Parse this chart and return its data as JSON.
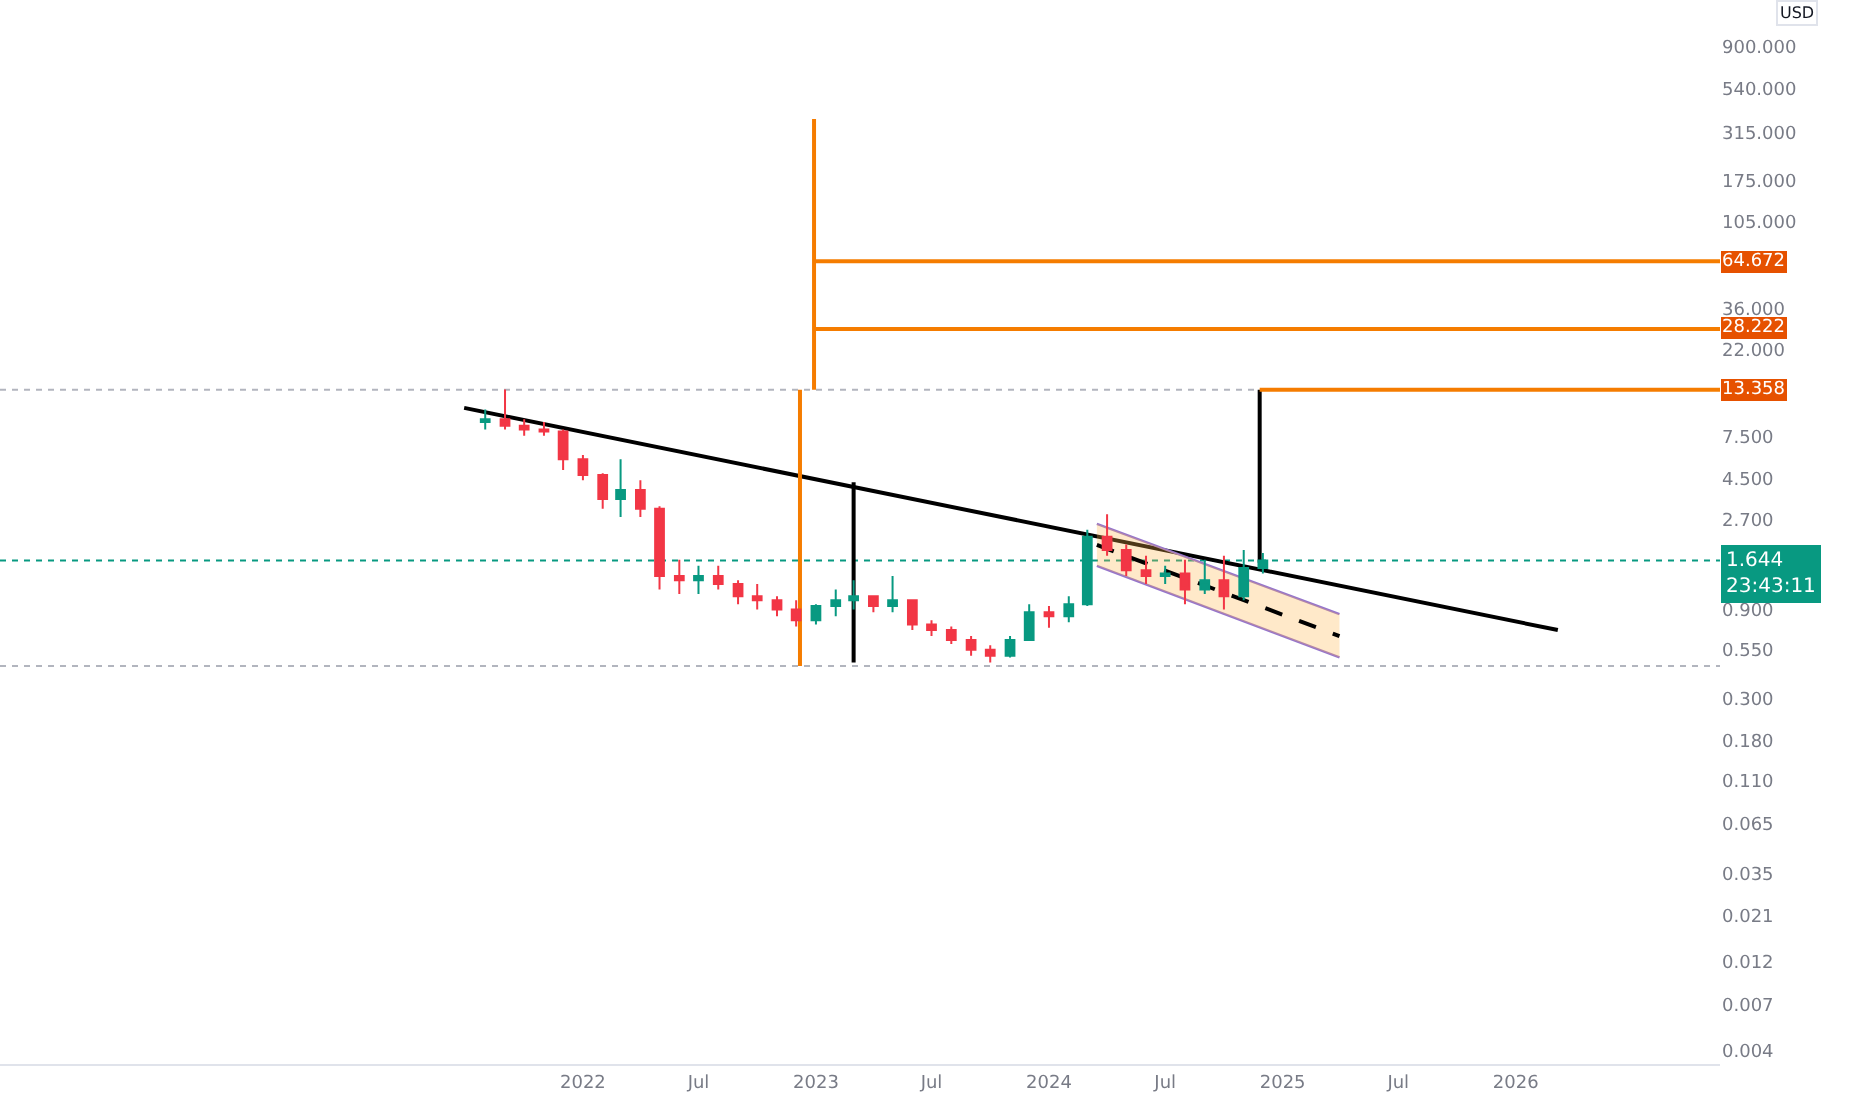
{
  "chart_data": {
    "type": "candlestick",
    "ylabel": "USD",
    "x": [
      "2021-08",
      "2021-09",
      "2021-10",
      "2021-11",
      "2021-12",
      "2022-01",
      "2022-02",
      "2022-03",
      "2022-04",
      "2022-05",
      "2022-06",
      "2022-07",
      "2022-08",
      "2022-09",
      "2022-10",
      "2022-11",
      "2022-12",
      "2023-01",
      "2023-02",
      "2023-03",
      "2023-04",
      "2023-05",
      "2023-06",
      "2023-07",
      "2023-08",
      "2023-09",
      "2023-10",
      "2023-11",
      "2023-12",
      "2024-01",
      "2024-02",
      "2024-03",
      "2024-04",
      "2024-05",
      "2024-06",
      "2024-07",
      "2024-08",
      "2024-09",
      "2024-10",
      "2024-11",
      "2024-12"
    ],
    "ohlc": [
      [
        9.0,
        10.5,
        8.2,
        9.3
      ],
      [
        9.3,
        13.4,
        8.2,
        8.6
      ],
      [
        8.6,
        9.3,
        7.6,
        8.2
      ],
      [
        8.2,
        9.0,
        7.6,
        8.0
      ],
      [
        8.0,
        8.2,
        5.0,
        5.7
      ],
      [
        5.7,
        6.0,
        4.4,
        4.7
      ],
      [
        4.7,
        4.8,
        3.1,
        3.5
      ],
      [
        3.5,
        5.7,
        2.8,
        3.9
      ],
      [
        3.9,
        4.4,
        2.8,
        3.1
      ],
      [
        3.1,
        3.2,
        1.15,
        1.36
      ],
      [
        1.36,
        1.66,
        1.09,
        1.29
      ],
      [
        1.29,
        1.54,
        1.09,
        1.36
      ],
      [
        1.36,
        1.54,
        1.15,
        1.23
      ],
      [
        1.23,
        1.29,
        0.96,
        1.06
      ],
      [
        1.06,
        1.23,
        0.9,
        1.01
      ],
      [
        1.01,
        1.06,
        0.83,
        0.9
      ],
      [
        0.9,
        1.01,
        0.73,
        0.79
      ],
      [
        0.79,
        0.96,
        0.75,
        0.94
      ],
      [
        0.94,
        1.15,
        0.83,
        1.01
      ],
      [
        1.01,
        1.29,
        0.9,
        1.06
      ],
      [
        1.06,
        1.06,
        0.87,
        0.94
      ],
      [
        0.94,
        1.36,
        0.87,
        1.01
      ],
      [
        1.01,
        1.01,
        0.7,
        0.75
      ],
      [
        0.75,
        0.79,
        0.65,
        0.7
      ],
      [
        0.7,
        0.73,
        0.59,
        0.62
      ],
      [
        0.62,
        0.65,
        0.51,
        0.55
      ],
      [
        0.55,
        0.58,
        0.47,
        0.51
      ],
      [
        0.51,
        0.65,
        0.5,
        0.62
      ],
      [
        0.62,
        0.96,
        0.62,
        0.87
      ],
      [
        0.87,
        0.94,
        0.72,
        0.83
      ],
      [
        0.83,
        1.06,
        0.77,
        0.96
      ],
      [
        0.96,
        2.4,
        0.94,
        2.2
      ],
      [
        2.2,
        2.9,
        1.74,
        1.87
      ],
      [
        1.87,
        2.0,
        1.36,
        1.46
      ],
      [
        1.46,
        1.74,
        1.23,
        1.36
      ],
      [
        1.36,
        1.54,
        1.23,
        1.4
      ],
      [
        1.4,
        1.66,
        0.96,
        1.15
      ],
      [
        1.15,
        1.66,
        1.09,
        1.29
      ],
      [
        1.29,
        1.74,
        0.9,
        1.06
      ],
      [
        1.06,
        1.87,
        1.01,
        1.5
      ],
      [
        1.5,
        1.8,
        1.4,
        1.644
      ]
    ],
    "series": [
      {
        "type": "line",
        "color": "#000000",
        "x": [
          "2021-06-29",
          "2026-03-08"
        ],
        "values": [
          10.7,
          0.7
        ]
      },
      {
        "type": "line",
        "color": "#000000",
        "x": [
          "2023-03-01",
          "2023-03-01"
        ],
        "values": [
          4.3,
          0.47
        ]
      },
      {
        "type": "line",
        "color": "#000000",
        "x": [
          "2024-11-26",
          "2024-11-26"
        ],
        "values": [
          1.6,
          13.358
        ]
      },
      {
        "type": "line",
        "color": "#f57c00",
        "x": [
          "2022-12-07",
          "2022-12-07"
        ],
        "values": [
          13.358,
          0.45
        ]
      },
      {
        "type": "line",
        "color": "#f57c00",
        "x": [
          "2022-12-29",
          "2022-12-29"
        ],
        "values": [
          371,
          13.358
        ]
      },
      {
        "type": "line",
        "color": "#f57c00",
        "x": [
          "2022-12-29",
          "2026-11-17"
        ],
        "values": [
          64.672,
          64.672
        ]
      },
      {
        "type": "line",
        "color": "#f57c00",
        "x": [
          "2022-12-29",
          "2026-11-17"
        ],
        "values": [
          28.222,
          28.222
        ]
      },
      {
        "type": "line",
        "color": "#f57c00",
        "x": [
          "2024-11-26",
          "2026-11-17"
        ],
        "values": [
          13.358,
          13.358
        ]
      },
      {
        "type": "line",
        "color": "#9575cd",
        "x": [
          "2024-03-16",
          "2025-03-31"
        ],
        "values": [
          2.58,
          0.85
        ]
      },
      {
        "type": "line",
        "color": "#9575cd",
        "x": [
          "2024-03-16",
          "2025-03-31"
        ],
        "values": [
          1.54,
          0.5
        ]
      },
      {
        "type": "line",
        "color": "#000000",
        "line_style": "dashed",
        "x": [
          "2024-03-16",
          "2025-03-31"
        ],
        "values": [
          1.99,
          0.65
        ],
        "lower": [
          1.54,
          0.5
        ],
        "upper": [
          2.58,
          0.85
        ]
      }
    ],
    "ref_lines": [
      {
        "axis": "y",
        "value": 13.358,
        "color": "#b2b5be",
        "line_style": "dotted"
      },
      {
        "axis": "y",
        "value": 0.45,
        "color": "#b2b5be",
        "line_style": "dotted"
      },
      {
        "axis": "y",
        "value": 1.644,
        "label": "1.644\n23:43:11",
        "color": "#089981",
        "line_style": "dotted"
      }
    ],
    "annotations": [
      {
        "text": "64.672",
        "x": "2026-11-17",
        "y": 64.672
      },
      {
        "text": "28.222",
        "x": "2026-11-17",
        "y": 28.222
      },
      {
        "text": "13.358",
        "x": "2026-11-17",
        "y": 13.358
      }
    ],
    "log": true,
    "xlim": [
      "2019-07-03",
      "2026-11-17"
    ],
    "ylim": [
      0.0034,
      1600
    ],
    "xticks": [
      {
        "value": "2022",
        "label": "2022"
      },
      {
        "value": "2022-07",
        "label": "Jul"
      },
      {
        "value": "2023",
        "label": "2023"
      },
      {
        "value": "2023-07",
        "label": "Jul"
      },
      {
        "value": "2024",
        "label": "2024"
      },
      {
        "value": "2024-07",
        "label": "Jul"
      },
      {
        "value": "2025",
        "label": "2025"
      },
      {
        "value": "2025-07",
        "label": "Jul"
      },
      {
        "value": "2026",
        "label": "2026"
      }
    ],
    "yticks": [
      {
        "value": 900,
        "label": "900.000"
      },
      {
        "value": 540,
        "label": "540.000"
      },
      {
        "value": 315,
        "label": "315.000"
      },
      {
        "value": 175,
        "label": "175.000"
      },
      {
        "value": 105,
        "label": "105.000"
      },
      {
        "value": 36,
        "label": "36.000"
      },
      {
        "value": 22,
        "label": "22.000"
      },
      {
        "value": 7.5,
        "label": "7.500"
      },
      {
        "value": 4.5,
        "label": "4.500"
      },
      {
        "value": 2.7,
        "label": "2.700"
      },
      {
        "value": 0.9,
        "label": "0.900"
      },
      {
        "value": 0.55,
        "label": "0.550"
      },
      {
        "value": 0.3,
        "label": "0.300"
      },
      {
        "value": 0.18,
        "label": "0.180"
      },
      {
        "value": 0.11,
        "label": "0.110"
      },
      {
        "value": 0.065,
        "label": "0.065"
      },
      {
        "value": 0.035,
        "label": "0.035"
      },
      {
        "value": 0.021,
        "label": "0.021"
      },
      {
        "value": 0.012,
        "label": "0.012"
      },
      {
        "value": 0.007,
        "label": "0.007"
      },
      {
        "value": 0.004,
        "label": "0.004"
      }
    ],
    "grid": false
  }
}
